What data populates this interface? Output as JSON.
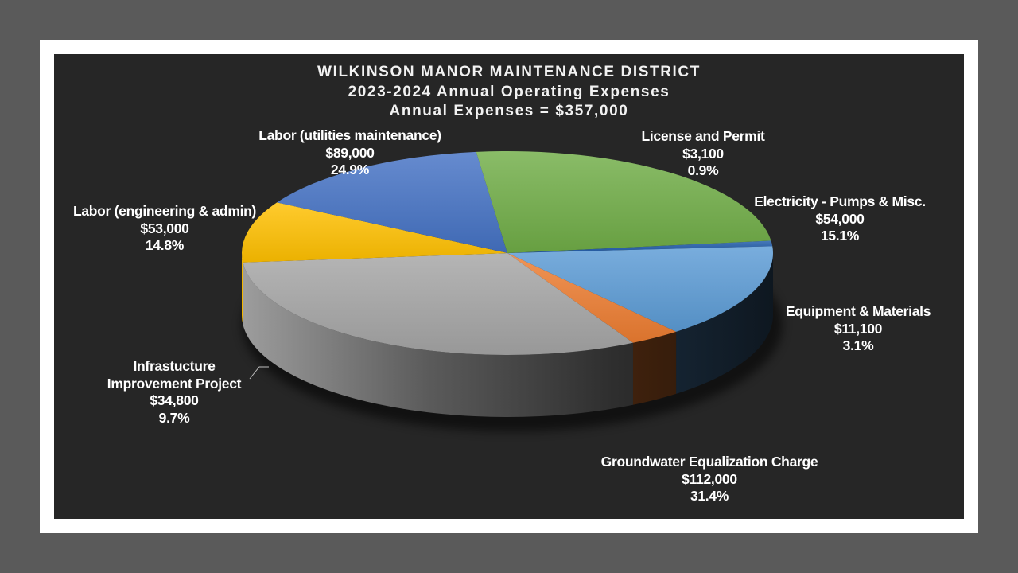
{
  "chart_data": {
    "type": "pie",
    "title": "WILKINSON MANOR MAINTENANCE DISTRICT",
    "subtitle": "2023-2024 Annual Operating Expenses",
    "subtitle2": "Annual Expenses = $357,000",
    "slices": [
      {
        "name": "License and Permit",
        "value": 3100,
        "value_label": "$3,100",
        "percent": 0.9,
        "percent_label": "0.9%",
        "color": "#1f5aa8"
      },
      {
        "name": "Electricity - Pumps & Misc.",
        "value": 54000,
        "value_label": "$54,000",
        "percent": 15.1,
        "percent_label": "15.1%",
        "color": "#5b9bd5"
      },
      {
        "name": "Equipment & Materials",
        "value": 11100,
        "value_label": "$11,100",
        "percent": 3.1,
        "percent_label": "3.1%",
        "color": "#ed7d31"
      },
      {
        "name": "Groundwater Equalization Charge",
        "value": 112000,
        "value_label": "$112,000",
        "percent": 31.4,
        "percent_label": "31.4%",
        "color": "#a5a5a5"
      },
      {
        "name": "Infrastucture Improvement Project",
        "name_line1": "Infrastucture",
        "name_line2": "Improvement Project",
        "value": 34800,
        "value_label": "$34,800",
        "percent": 9.7,
        "percent_label": "9.7%",
        "color": "#ffc000"
      },
      {
        "name": "Labor (engineering & admin)",
        "value": 53000,
        "value_label": "$53,000",
        "percent": 14.8,
        "percent_label": "14.8%",
        "color": "#4472c4"
      },
      {
        "name": "Labor (utilities maintenance)",
        "value": 89000,
        "value_label": "$89,000",
        "percent": 24.9,
        "percent_label": "24.9%",
        "color": "#70ad47"
      }
    ],
    "style": "3d-pie",
    "background": "#262626",
    "frame_color": "#ffffff",
    "outer_background": "#5a5a5a"
  }
}
